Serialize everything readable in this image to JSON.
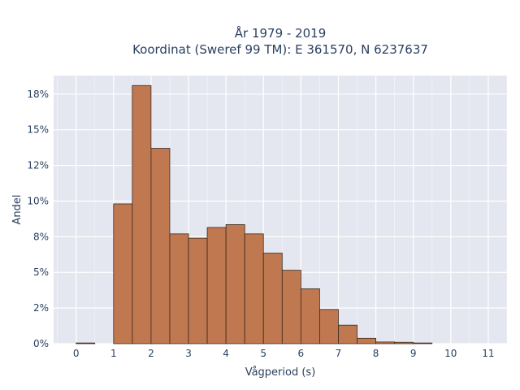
{
  "chart_data": {
    "type": "bar",
    "title_lines": [
      "År 1979 - 2019",
      "Koordinat (Sweref 99 TM): E 361570, N 6237637"
    ],
    "xlabel": "Vågperiod (s)",
    "ylabel": "Andel",
    "x_ticks": [
      0,
      1,
      2,
      3,
      4,
      5,
      6,
      7,
      8,
      9,
      10,
      11
    ],
    "x_tick_labels": [
      "0",
      "1",
      "2",
      "3",
      "4",
      "5",
      "6",
      "7",
      "8",
      "9",
      "10",
      "11"
    ],
    "y_ticks": [
      0,
      2.5,
      5,
      7.5,
      10,
      12.5,
      15,
      17.5
    ],
    "y_tick_labels": [
      "0%",
      "2%",
      "5%",
      "8%",
      "10%",
      "12%",
      "15%",
      "18%"
    ],
    "xlim": [
      -0.6,
      11.5
    ],
    "ylim": [
      0,
      18.8
    ],
    "bin_width": 0.5,
    "bins": [
      {
        "x0": 0.0,
        "value": 0.05
      },
      {
        "x0": 0.5,
        "value": 0.0
      },
      {
        "x0": 1.0,
        "value": 9.8
      },
      {
        "x0": 1.5,
        "value": 18.1
      },
      {
        "x0": 2.0,
        "value": 13.7
      },
      {
        "x0": 2.5,
        "value": 7.7
      },
      {
        "x0": 3.0,
        "value": 7.4
      },
      {
        "x0": 3.5,
        "value": 8.15
      },
      {
        "x0": 4.0,
        "value": 8.35
      },
      {
        "x0": 4.5,
        "value": 7.7
      },
      {
        "x0": 5.0,
        "value": 6.35
      },
      {
        "x0": 5.5,
        "value": 5.15
      },
      {
        "x0": 6.0,
        "value": 3.85
      },
      {
        "x0": 6.5,
        "value": 2.4
      },
      {
        "x0": 7.0,
        "value": 1.3
      },
      {
        "x0": 7.5,
        "value": 0.38
      },
      {
        "x0": 8.0,
        "value": 0.12
      },
      {
        "x0": 8.5,
        "value": 0.1
      },
      {
        "x0": 9.0,
        "value": 0.05
      }
    ],
    "bar_color": "#c07850",
    "bar_edge_color": "#3a2a1e",
    "plot_bg": "#e5e7f0",
    "grid": true
  }
}
